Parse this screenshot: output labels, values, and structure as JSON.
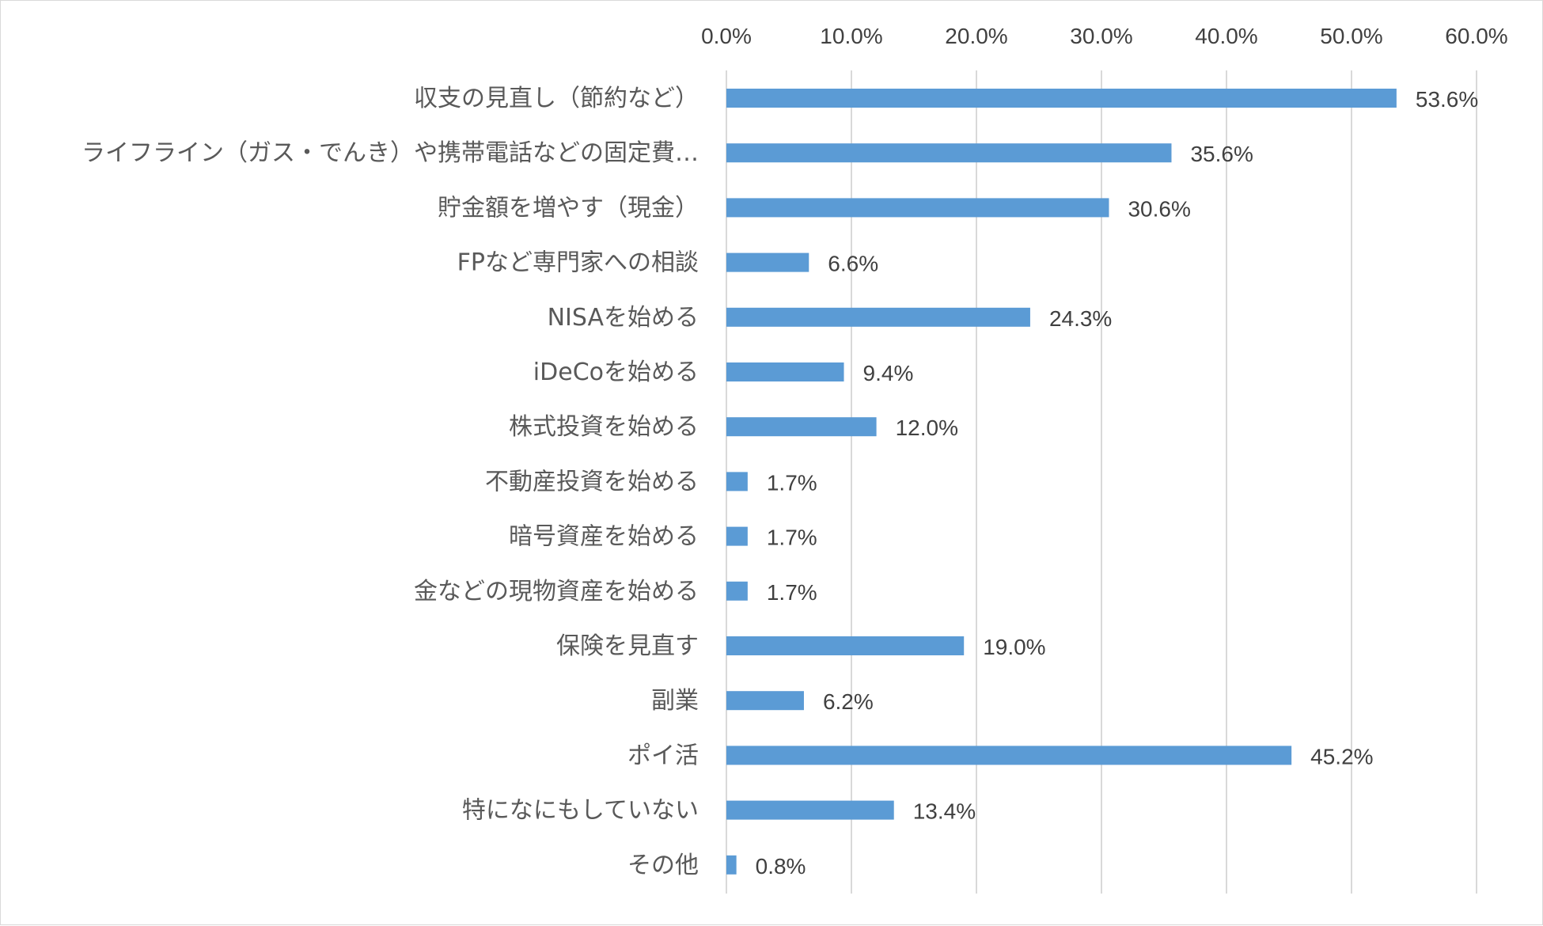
{
  "chart_data": {
    "type": "bar",
    "orientation": "horizontal",
    "title": "",
    "xlabel": "",
    "ylabel": "",
    "xlim": [
      0,
      60
    ],
    "x_ticks": [
      "0.0%",
      "10.0%",
      "20.0%",
      "30.0%",
      "40.0%",
      "50.0%",
      "60.0%"
    ],
    "x_tick_values": [
      0,
      10,
      20,
      30,
      40,
      50,
      60
    ],
    "x_axis_position": "top",
    "grid": true,
    "legend": "none",
    "bar_color": "#5b9bd5",
    "categories": [
      "収支の見直し（節約など）",
      "ライフライン（ガス・でんき）や携帯電話などの固定費…",
      "貯金額を増やす（現金）",
      "FPなど専門家への相談",
      "NISAを始める",
      "iDeCoを始める",
      "株式投資を始める",
      "不動産投資を始める",
      "暗号資産を始める",
      "金などの現物資産を始める",
      "保険を見直す",
      "副業",
      "ポイ活",
      "特になにもしていない",
      "その他"
    ],
    "values": [
      53.6,
      35.6,
      30.6,
      6.6,
      24.3,
      9.4,
      12.0,
      1.7,
      1.7,
      1.7,
      19.0,
      6.2,
      45.2,
      13.4,
      0.8
    ],
    "value_labels": [
      "53.6%",
      "35.6%",
      "30.6%",
      "6.6%",
      "24.3%",
      "9.4%",
      "12.0%",
      "1.7%",
      "1.7%",
      "1.7%",
      "19.0%",
      "6.2%",
      "45.2%",
      "13.4%",
      "0.8%"
    ]
  }
}
